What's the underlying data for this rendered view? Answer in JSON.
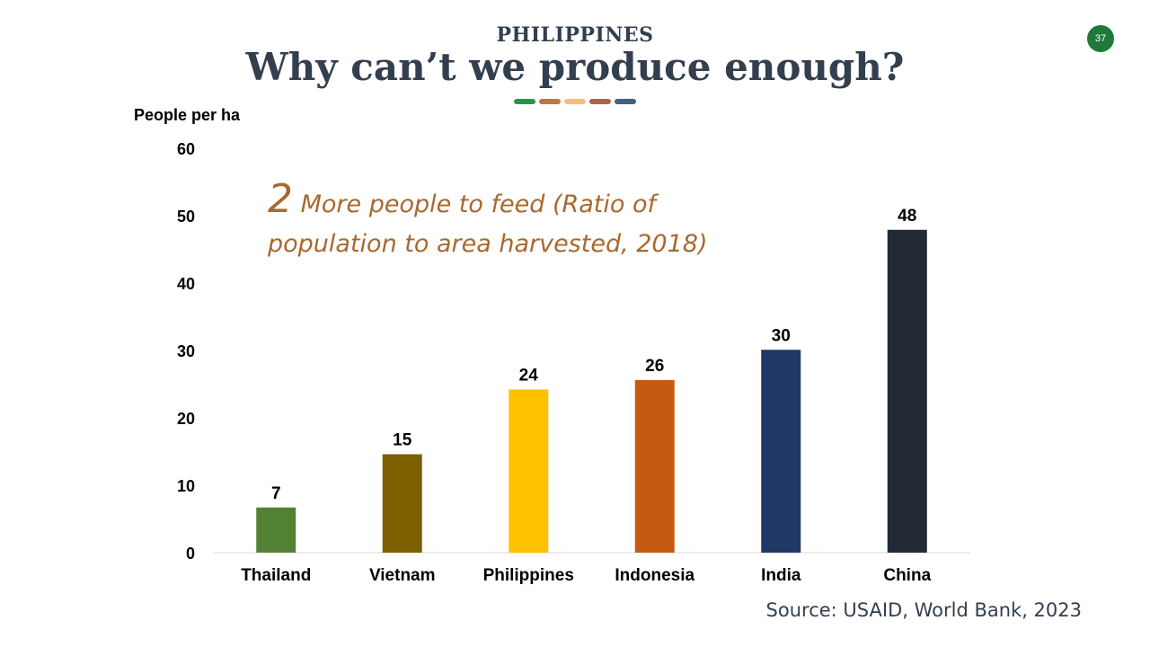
{
  "header": {
    "supertitle": "PHILIPPINES",
    "title": "Why can’t we produce enough?",
    "page_number": "37",
    "dot_colors": [
      "#1f9a4a",
      "#c0793a",
      "#f3c27a",
      "#b3604a",
      "#44607a"
    ]
  },
  "annotation": {
    "number": "2",
    "text": "More people to feed (Ratio of population to area harvested, 2018)"
  },
  "source": "Source: USAID, World Bank, 2023",
  "chart_data": {
    "type": "bar",
    "ylabel": "People per ha",
    "xlabel": "",
    "ylim": [
      0,
      60
    ],
    "yticks": [
      0,
      10,
      20,
      30,
      40,
      50,
      60
    ],
    "categories": [
      "Thailand",
      "Vietnam",
      "Philippines",
      "Indonesia",
      "India",
      "China"
    ],
    "values": [
      6.7,
      14.6,
      24.2,
      25.6,
      30.1,
      47.9
    ],
    "data_labels": [
      "7",
      "15",
      "24",
      "26",
      "30",
      "48"
    ],
    "colors": [
      "#548235",
      "#7f6000",
      "#ffc000",
      "#c55a11",
      "#1f3864",
      "#222a35"
    ],
    "grid": false,
    "legend": "none"
  }
}
